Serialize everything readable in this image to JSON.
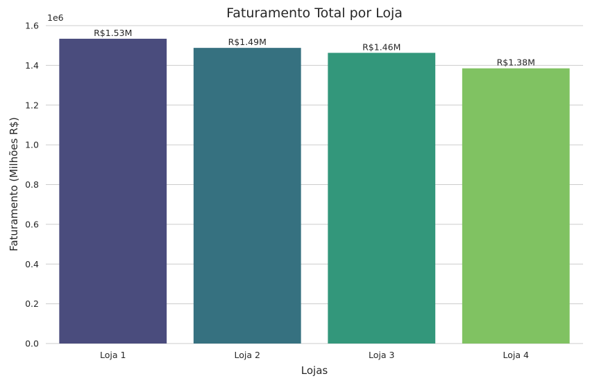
{
  "chart_data": {
    "type": "bar",
    "title": "Faturamento Total por Loja",
    "xlabel": "Lojas",
    "ylabel": "Faturamento (Milhões R$)",
    "offset_text": "1e6",
    "categories": [
      "Loja 1",
      "Loja 2",
      "Loja 3",
      "Loja 4"
    ],
    "values": [
      1534000,
      1488000,
      1463000,
      1385000
    ],
    "data_labels": [
      "R$1.53M",
      "R$1.49M",
      "R$1.46M",
      "R$1.38M"
    ],
    "colors": [
      "#4a4c7d",
      "#367180",
      "#33977b",
      "#80c262"
    ],
    "ylim": [
      0,
      1.6
    ],
    "yscale": 1000000,
    "yticks": [
      "0.0",
      "0.2",
      "0.4",
      "0.6",
      "0.8",
      "1.0",
      "1.2",
      "1.4",
      "1.6"
    ],
    "grid": "horizontal"
  }
}
